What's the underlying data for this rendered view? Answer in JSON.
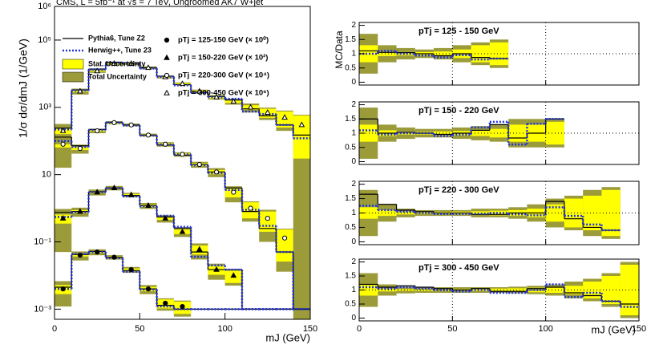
{
  "chart_data": [
    {
      "type": "hist_log",
      "title": "CMS, L = 5fb⁻¹ at √s = 7 TeV, Ungroomed AK7 W+jet",
      "ylabel": "1/σ dσ/dmJ (1/GeV)",
      "xlabel": "mJ (GeV)",
      "log_y": true,
      "xlim": [
        0,
        150
      ],
      "ylim": [
        0.0005,
        1000000
      ],
      "xticks": [
        0,
        50,
        100,
        150
      ],
      "yticks": [
        {
          "value": 0.001,
          "label": "10⁻³"
        },
        {
          "value": 0.1,
          "label": "10⁻¹"
        },
        10,
        {
          "value": 1000,
          "label": "10³"
        },
        {
          "value": 100000,
          "label": "10⁵"
        },
        {
          "value": 1000000,
          "label": "10⁶"
        }
      ],
      "bins": [
        0,
        10,
        20,
        30,
        40,
        50,
        60,
        70,
        80,
        90,
        100,
        110,
        120,
        130,
        140,
        150
      ],
      "mc": [
        {
          "name": "Pythia6, Tune Z2",
          "color": "#000000",
          "style": "solid"
        },
        {
          "name": "Herwig++, Tune 23",
          "color": "#2233dd",
          "style": "dotted"
        }
      ],
      "bands": [
        {
          "name": "Stat. Uncertainty",
          "color": "#ffff00"
        },
        {
          "name": "Total Uncertainty",
          "color": "#9b9b3a"
        }
      ],
      "groups": [
        {
          "name": "pTj = 125-150 GeV (× 10⁰)",
          "marker": "circle-filled",
          "data": [
            0.004,
            0.04,
            0.05,
            0.035,
            0.015,
            0.004,
            0.0015,
            0.0012,
            null,
            null,
            null,
            null,
            null,
            null,
            null
          ],
          "pythia": [
            0.0045,
            0.042,
            0.052,
            0.035,
            0.014,
            0.004,
            0.0013,
            0.001,
            0.001,
            0.001,
            0.001,
            0.001,
            0.001,
            0.001,
            0.001
          ],
          "herwig": [
            0.004,
            0.044,
            0.05,
            0.033,
            0.013,
            0.0038,
            0.0012,
            0.001,
            0.001,
            0.001,
            0.001,
            0.001,
            0.001,
            0.001,
            0.001
          ],
          "stat_err": [
            0.3,
            0.08,
            0.06,
            0.06,
            0.08,
            0.15,
            0.3,
            0.4,
            null,
            null,
            null,
            null,
            null,
            null,
            null
          ],
          "total_err": [
            0.7,
            0.3,
            0.2,
            0.15,
            0.2,
            0.3,
            0.4,
            0.5,
            null,
            null,
            null,
            null,
            null,
            null,
            null
          ]
        },
        {
          "name": "pTj = 150-220 GeV (× 10²)",
          "marker": "triangle-filled",
          "data": [
            0.5,
            0.8,
            3,
            4,
            2.5,
            1.2,
            0.5,
            0.2,
            0.06,
            0.015,
            0.01,
            null,
            null,
            null,
            null
          ],
          "pythia": [
            0.75,
            0.8,
            3.1,
            4,
            2.4,
            1.2,
            0.55,
            0.26,
            0.05,
            0.015,
            0.015,
            0.001,
            0.001,
            0.001,
            0.001
          ],
          "herwig": [
            0.55,
            0.76,
            3,
            4,
            2.25,
            1.14,
            0.6,
            0.28,
            0.036,
            0.02,
            0.015,
            0.001,
            0.001,
            0.001,
            0.001
          ],
          "stat_err": [
            0.3,
            0.1,
            0.05,
            0.05,
            0.06,
            0.08,
            0.1,
            0.15,
            0.3,
            0.3,
            0.4,
            null,
            null,
            null,
            null
          ],
          "total_err": [
            0.9,
            0.3,
            0.2,
            0.15,
            0.15,
            0.2,
            0.25,
            0.3,
            0.5,
            0.5,
            0.5,
            null,
            null,
            null,
            null
          ]
        },
        {
          "name": "pTj = 220-300 GeV (× 10⁴)",
          "marker": "circle-open",
          "data": [
            80,
            60,
            200,
            350,
            300,
            150,
            80,
            40,
            20,
            12,
            3,
            1,
            0.5,
            0.13,
            null
          ],
          "pythia": [
            130,
            72,
            220,
            360,
            300,
            150,
            76,
            38,
            20,
            12,
            4,
            0.8,
            0.25,
            0.05,
            0.001
          ],
          "herwig": [
            100,
            66,
            210,
            350,
            290,
            145,
            78,
            40,
            19,
            11,
            3.5,
            0.9,
            0.3,
            0.05,
            0.001
          ],
          "stat_err": [
            0.2,
            0.1,
            0.05,
            0.04,
            0.04,
            0.05,
            0.06,
            0.08,
            0.1,
            0.15,
            0.3,
            0.5,
            0.6,
            0.8,
            null
          ],
          "total_err": [
            0.8,
            0.3,
            0.15,
            0.1,
            0.1,
            0.1,
            0.15,
            0.15,
            0.2,
            0.3,
            0.5,
            0.6,
            0.8,
            0.9,
            null
          ]
        },
        {
          "name": "pTj = 300-450 GeV (× 10⁶)",
          "marker": "triangle-open",
          "data": [
            200,
            3000,
            12000,
            20000,
            20000,
            15000,
            8000,
            5000,
            3000,
            2000,
            1500,
            1000,
            700,
            500,
            300
          ],
          "pythia": [
            240,
            3300,
            13800,
            22000,
            21000,
            15000,
            8400,
            4750,
            2850,
            2100,
            1650,
            900,
            560,
            300,
            150
          ],
          "herwig": [
            220,
            3150,
            13200,
            21000,
            20000,
            14250,
            8000,
            4500,
            2700,
            2000,
            1800,
            750,
            630,
            300,
            120
          ],
          "stat_err": [
            0.2,
            0.05,
            0.03,
            0.03,
            0.03,
            0.03,
            0.04,
            0.05,
            0.06,
            0.08,
            0.1,
            0.15,
            0.3,
            0.5,
            0.9
          ],
          "total_err": [
            0.6,
            0.2,
            0.12,
            0.1,
            0.1,
            0.1,
            0.1,
            0.1,
            0.12,
            0.15,
            0.2,
            0.3,
            0.4,
            0.6,
            1.0
          ]
        }
      ]
    },
    {
      "type": "ratio",
      "label": "pTj = 125 - 150 GeV",
      "ylabel": "MC/Data",
      "group": 0,
      "xlim": [
        0,
        150
      ],
      "ylim": [
        -0.1,
        2.1
      ],
      "xticks": [
        0,
        50,
        100,
        150
      ],
      "yticks": [
        0,
        0.5,
        1,
        1.5,
        2
      ],
      "grid": true,
      "pythia": [
        1.1,
        1.05,
        1.04,
        1.0,
        0.93,
        1.0,
        0.87,
        0.83,
        null,
        null,
        null,
        null,
        null,
        null,
        null
      ],
      "herwig": [
        1.0,
        1.1,
        1.0,
        0.94,
        0.87,
        0.95,
        0.8,
        0.83,
        null,
        null,
        null,
        null,
        null,
        null,
        null
      ]
    },
    {
      "type": "ratio",
      "label": "pTj = 150 - 220 GeV",
      "group": 1,
      "xlim": [
        0,
        150
      ],
      "ylim": [
        -0.1,
        2.1
      ],
      "xticks": [
        0,
        50,
        100,
        150
      ],
      "yticks": [
        0,
        0.5,
        1,
        1.5,
        2
      ],
      "grid": true,
      "pythia": [
        1.5,
        1.0,
        1.03,
        1.0,
        0.96,
        1.0,
        1.1,
        1.3,
        0.83,
        1.0,
        1.5,
        null,
        null,
        null,
        null
      ],
      "herwig": [
        1.1,
        0.95,
        1.0,
        1.0,
        0.9,
        0.95,
        1.2,
        1.4,
        0.6,
        1.33,
        1.5,
        null,
        null,
        null,
        null
      ]
    },
    {
      "type": "ratio",
      "label": "pTj = 220 - 300 GeV",
      "group": 2,
      "xlim": [
        0,
        150
      ],
      "ylim": [
        -0.1,
        2.1
      ],
      "xticks": [
        0,
        50,
        100,
        150
      ],
      "yticks": [
        0,
        0.5,
        1,
        1.5,
        2
      ],
      "grid": true,
      "pythia": [
        1.65,
        1.3,
        1.1,
        1.05,
        1.0,
        1.0,
        0.95,
        0.95,
        1.0,
        1.0,
        1.4,
        0.8,
        0.5,
        0.4,
        null
      ],
      "herwig": [
        1.25,
        1.1,
        1.05,
        1.0,
        0.97,
        0.97,
        0.98,
        1.0,
        0.95,
        0.92,
        1.2,
        0.9,
        0.6,
        0.4,
        null
      ]
    },
    {
      "type": "ratio",
      "label": "pTj = 300 - 450 GeV",
      "group": 3,
      "xlabel": "mJ (GeV)",
      "xlim": [
        0,
        150
      ],
      "ylim": [
        -0.1,
        2.1
      ],
      "xticks": [
        0,
        50,
        100,
        150
      ],
      "yticks": [
        0,
        0.5,
        1,
        1.5,
        2
      ],
      "grid": true,
      "pythia": [
        1.2,
        1.1,
        1.15,
        1.1,
        1.05,
        1.0,
        1.05,
        0.95,
        0.95,
        1.05,
        1.1,
        0.9,
        0.8,
        0.6,
        0.5
      ],
      "herwig": [
        1.1,
        1.05,
        1.1,
        1.05,
        1.0,
        0.95,
        1.0,
        0.9,
        0.9,
        1.0,
        1.2,
        0.75,
        0.9,
        0.6,
        0.4
      ]
    }
  ]
}
